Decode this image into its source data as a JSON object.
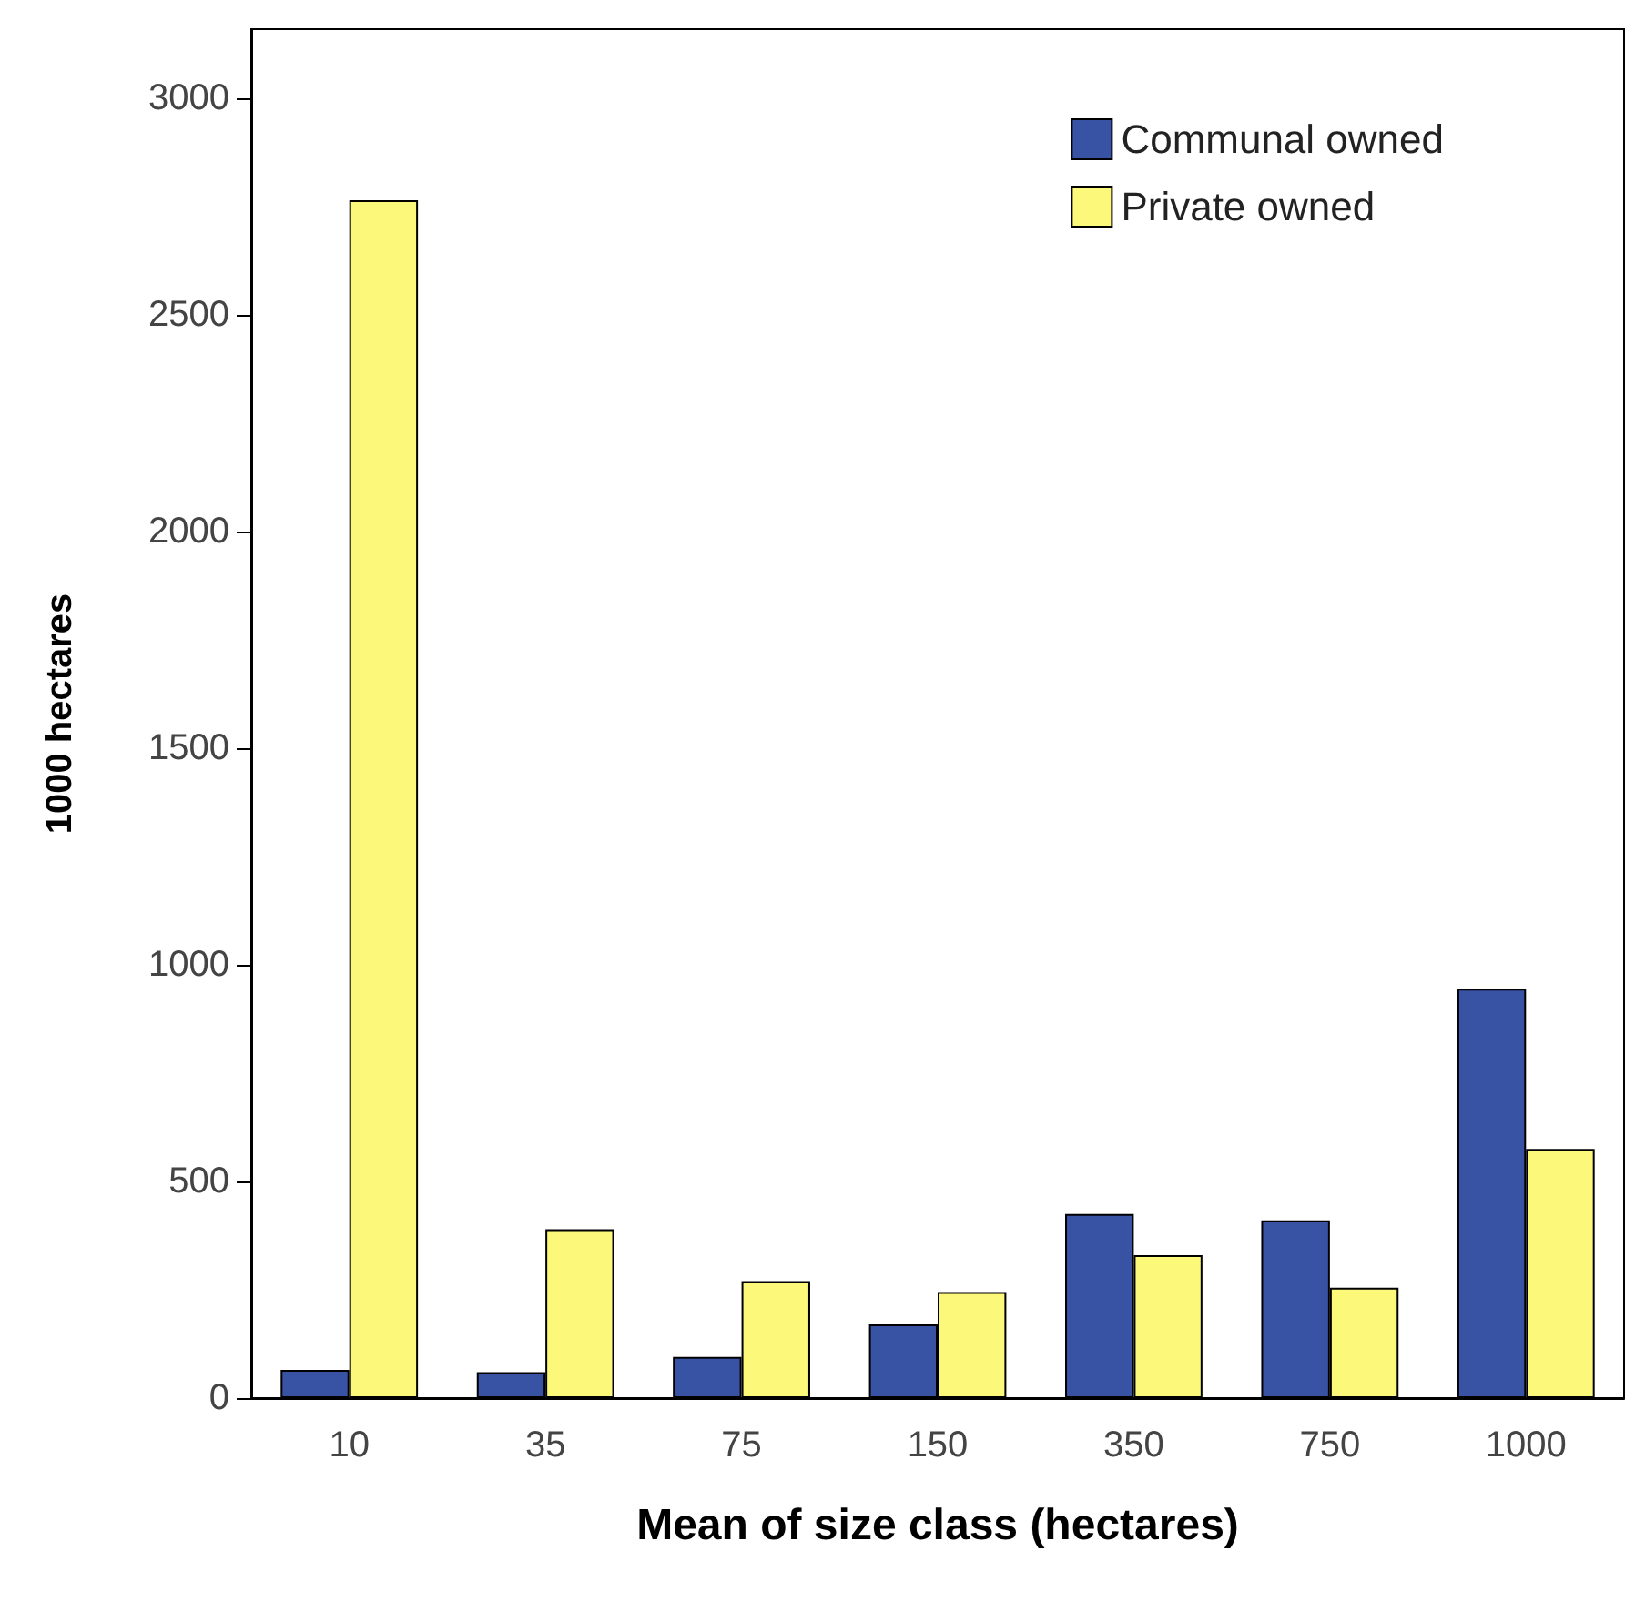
{
  "chart_data": {
    "type": "bar",
    "xlabel": "Mean of size class (hectares)",
    "ylabel": "1000 hectares",
    "categories": [
      "10",
      "35",
      "75",
      "150",
      "350",
      "750",
      "1000"
    ],
    "series": [
      {
        "name": "Communal owned",
        "color": "#3953a4",
        "values": [
          65,
          60,
          95,
          170,
          425,
          410,
          945
        ]
      },
      {
        "name": "Private owned",
        "color": "#fbf87a",
        "values": [
          2765,
          390,
          270,
          245,
          330,
          255,
          575
        ]
      }
    ],
    "ylim": [
      0,
      3160
    ],
    "yticks": [
      0,
      500,
      1000,
      1500,
      2000,
      2500,
      3000
    ],
    "grid": false,
    "legend": "top right"
  }
}
